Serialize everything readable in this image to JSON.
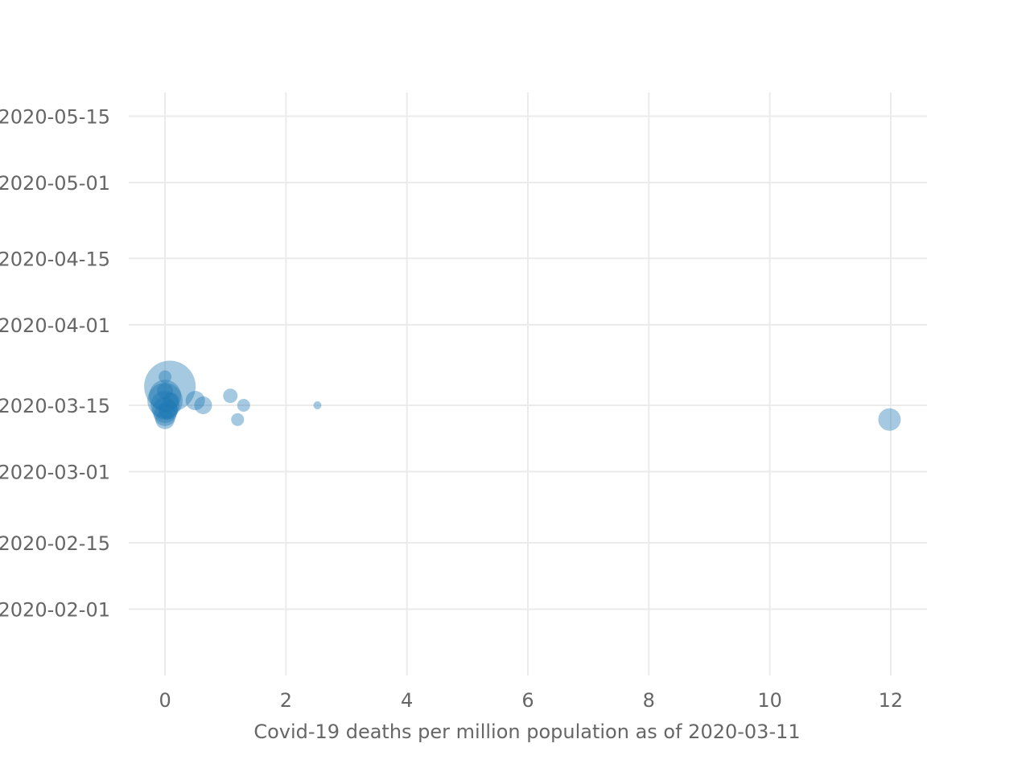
{
  "chart_data": {
    "type": "scatter",
    "title": "",
    "xlabel": "Covid-19 deaths per million population as of 2020-03-11",
    "ylabel": "",
    "xlim": [
      -0.6,
      12.6
    ],
    "ylim": [
      "2020-01-18",
      "2020-05-20"
    ],
    "x_ticks": [
      0,
      2,
      4,
      6,
      8,
      10,
      12
    ],
    "x_tick_labels": [
      "0",
      "2",
      "4",
      "6",
      "8",
      "10",
      "12"
    ],
    "y_ticks": [
      "2020-02-01",
      "2020-02-15",
      "2020-03-01",
      "2020-03-15",
      "2020-04-01",
      "2020-04-15",
      "2020-05-01",
      "2020-05-15"
    ],
    "y_tick_labels": [
      "2020-02-01",
      "2020-02-15",
      "2020-03-01",
      "2020-03-15",
      "2020-04-01",
      "2020-04-15",
      "2020-05-01",
      "2020-05-15"
    ],
    "grid": true,
    "legend": false,
    "marker_color": "#1f77b4",
    "marker_opacity": 0.4,
    "size_encoding": "bubble area varies by point",
    "points": [
      {
        "x": 0.08,
        "y": "2020-03-19",
        "size": 32
      },
      {
        "x": 0.0,
        "y": "2020-03-17",
        "size": 20
      },
      {
        "x": 0.0,
        "y": "2020-03-16",
        "size": 22
      },
      {
        "x": 0.0,
        "y": "2020-03-15",
        "size": 18
      },
      {
        "x": 0.0,
        "y": "2020-03-14",
        "size": 16
      },
      {
        "x": 0.0,
        "y": "2020-03-13",
        "size": 14
      },
      {
        "x": 0.0,
        "y": "2020-03-12",
        "size": 12
      },
      {
        "x": 0.0,
        "y": "2020-03-18",
        "size": 10
      },
      {
        "x": 0.0,
        "y": "2020-03-21",
        "size": 8
      },
      {
        "x": 0.05,
        "y": "2020-03-14",
        "size": 12
      },
      {
        "x": 0.1,
        "y": "2020-03-16",
        "size": 10
      },
      {
        "x": 0.5,
        "y": "2020-03-16",
        "size": 12
      },
      {
        "x": 0.63,
        "y": "2020-03-15",
        "size": 11
      },
      {
        "x": 1.08,
        "y": "2020-03-17",
        "size": 9
      },
      {
        "x": 1.3,
        "y": "2020-03-15",
        "size": 8
      },
      {
        "x": 1.2,
        "y": "2020-03-12",
        "size": 8
      },
      {
        "x": 2.52,
        "y": "2020-03-15",
        "size": 5
      },
      {
        "x": 11.98,
        "y": "2020-03-12",
        "size": 14
      }
    ]
  }
}
